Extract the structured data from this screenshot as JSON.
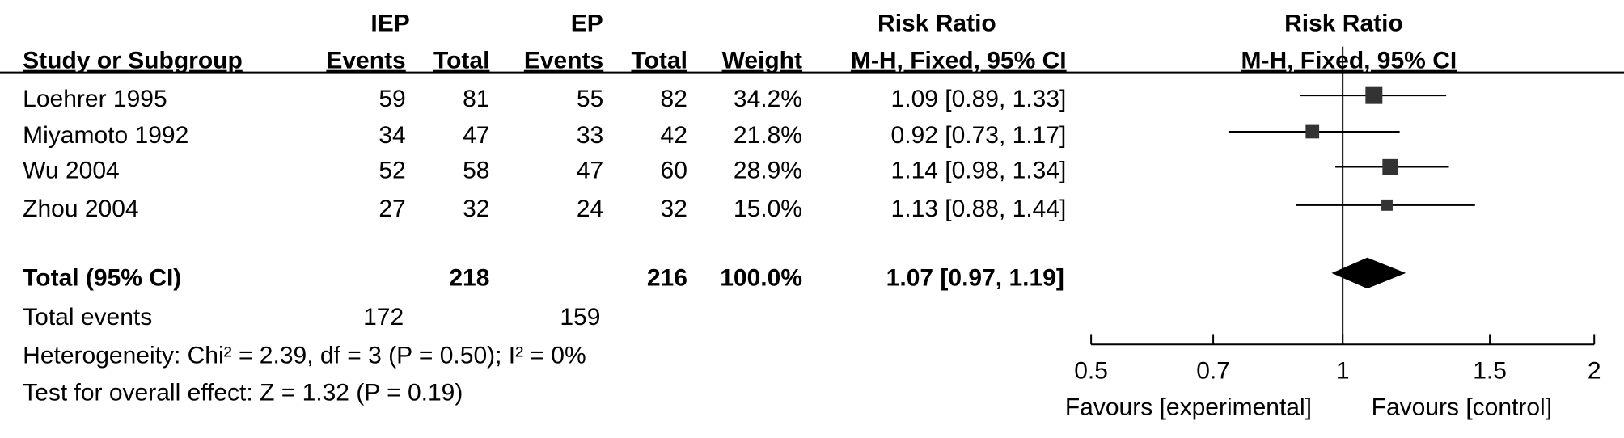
{
  "chart_data": {
    "type": "forest",
    "group_headers": [
      "IEP",
      "EP"
    ],
    "columns": [
      "Study or Subgroup",
      "Events",
      "Total",
      "Events",
      "Total",
      "Weight",
      "M-H, Fixed, 95% CI"
    ],
    "effect_title": "Risk Ratio",
    "studies": [
      {
        "name": "Loehrer 1995",
        "iep_events": 59,
        "iep_total": 81,
        "ep_events": 55,
        "ep_total": 82,
        "weight": 34.2,
        "weight_label": "34.2%",
        "rr": 1.09,
        "ci_low": 0.89,
        "ci_high": 1.33,
        "ci_label": "1.09 [0.89, 1.33]"
      },
      {
        "name": "Miyamoto 1992",
        "iep_events": 34,
        "iep_total": 47,
        "ep_events": 33,
        "ep_total": 42,
        "weight": 21.8,
        "weight_label": "21.8%",
        "rr": 0.92,
        "ci_low": 0.73,
        "ci_high": 1.17,
        "ci_label": "0.92 [0.73, 1.17]"
      },
      {
        "name": "Wu 2004",
        "iep_events": 52,
        "iep_total": 58,
        "ep_events": 47,
        "ep_total": 60,
        "weight": 28.9,
        "weight_label": "28.9%",
        "rr": 1.14,
        "ci_low": 0.98,
        "ci_high": 1.34,
        "ci_label": "1.14 [0.98, 1.34]"
      },
      {
        "name": "Zhou 2004",
        "iep_events": 27,
        "iep_total": 32,
        "ep_events": 24,
        "ep_total": 32,
        "weight": 15.0,
        "weight_label": "15.0%",
        "rr": 1.13,
        "ci_low": 0.88,
        "ci_high": 1.44,
        "ci_label": "1.13 [0.88, 1.44]"
      }
    ],
    "total": {
      "name": "Total (95% CI)",
      "iep_total": 218,
      "ep_total": 216,
      "weight": 100.0,
      "weight_label": "100.0%",
      "rr": 1.07,
      "ci_low": 0.97,
      "ci_high": 1.19,
      "ci_label": "1.07 [0.97, 1.19]"
    },
    "total_events": {
      "name": "Total events",
      "iep": 172,
      "ep": 159
    },
    "heterogeneity": "Heterogeneity: Chi² = 2.39, df = 3 (P = 0.50); I² = 0%",
    "overall_effect": "Test for overall effect: Z = 1.32 (P = 0.19)",
    "xscale": "log",
    "xlim": [
      0.5,
      2
    ],
    "xticks": [
      0.5,
      0.7,
      1,
      1.5,
      2
    ],
    "x_labels": [
      "Favours [experimental]",
      "Favours [control]"
    ],
    "color": "#333333"
  }
}
